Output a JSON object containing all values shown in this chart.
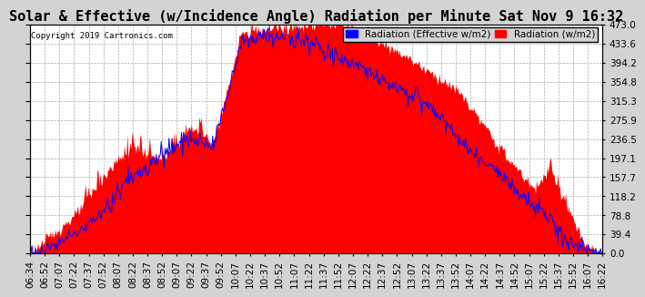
{
  "title": "Solar & Effective (w/Incidence Angle) Radiation per Minute Sat Nov 9 16:32",
  "copyright": "Copyright 2019 Cartronics.com",
  "legend_blue": "Radiation (Effective w/m2)",
  "legend_red": "Radiation (w/m2)",
  "ylabel_right_values": [
    0.0,
    39.4,
    78.8,
    118.2,
    157.7,
    197.1,
    236.5,
    275.9,
    315.3,
    354.8,
    394.2,
    433.6,
    473.0
  ],
  "ylim": [
    0,
    473.0
  ],
  "background_color": "#d3d3d3",
  "plot_bg_color": "#ffffff",
  "grid_color": "#aaaaaa",
  "title_fontsize": 11,
  "tick_fontsize": 7.5,
  "x_tick_labels": [
    "06:34",
    "06:52",
    "07:07",
    "07:22",
    "07:37",
    "07:52",
    "08:07",
    "08:22",
    "08:37",
    "08:52",
    "09:07",
    "09:22",
    "09:37",
    "09:52",
    "10:07",
    "10:22",
    "10:37",
    "10:52",
    "11:07",
    "11:22",
    "11:37",
    "11:52",
    "12:07",
    "12:22",
    "12:37",
    "12:52",
    "13:07",
    "13:22",
    "13:37",
    "13:52",
    "14:07",
    "14:22",
    "14:37",
    "14:52",
    "15:07",
    "15:22",
    "15:37",
    "15:52",
    "16:07",
    "16:22"
  ]
}
